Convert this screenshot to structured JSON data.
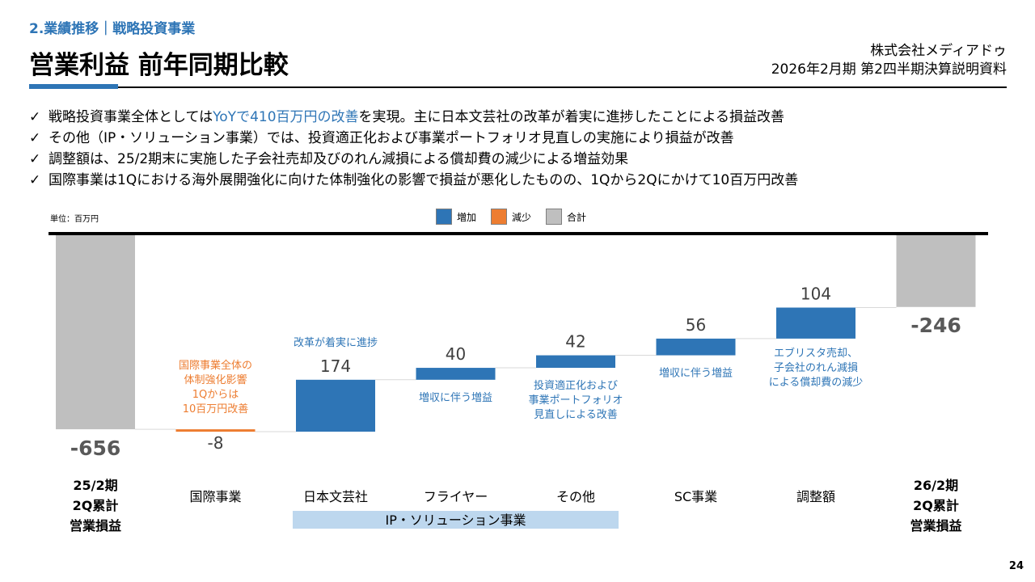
{
  "header": {
    "section": "2.業績推移｜戦略投資事業",
    "title": "営業利益 前年同期比較",
    "company": "株式会社メディアドゥ",
    "document": "2026年2月期 第2四半期決算説明資料"
  },
  "bullets": [
    {
      "pre": "戦略投資事業全体としては",
      "hl": "YoYで410百万円の改善",
      "post": "を実現。主に日本文芸社の改革が着実に進捗したことによる損益改善"
    },
    {
      "pre": "その他（IP・ソリューション事業）では、投資適正化および事業ポートフォリオ見直しの実施により損益が改善",
      "hl": "",
      "post": ""
    },
    {
      "pre": "調整額は、25/2期末に実施した子会社売却及びのれん減損による償却費の減少による増益効果",
      "hl": "",
      "post": ""
    },
    {
      "pre": "国際事業は1Qにおける海外展開強化に向けた体制強化の影響で損益が悪化したものの、1Qから2Qにかけて10百万円改善",
      "hl": "",
      "post": ""
    }
  ],
  "unit_label": "単位：百万円",
  "legend": {
    "increase": "増加",
    "decrease": "減少",
    "total": "合計"
  },
  "colors": {
    "increase": "#2E75B6",
    "decrease": "#ED7D31",
    "total": "#BFBFBF",
    "accent": "#2E75B6"
  },
  "chart_data": {
    "type": "waterfall",
    "unit": "百万円",
    "ylim": [
      -720,
      0
    ],
    "bars": [
      {
        "category": "25/2期\n2Q累計\n営業損益",
        "kind": "total",
        "value": -656,
        "label": "-656",
        "bold": true
      },
      {
        "category": "国際事業",
        "kind": "decrease",
        "value": -8,
        "label": "-8",
        "bold": false
      },
      {
        "category": "日本文芸社",
        "kind": "increase",
        "value": 174,
        "label": "174",
        "bold": false
      },
      {
        "category": "フライヤー",
        "kind": "increase",
        "value": 40,
        "label": "40",
        "bold": false
      },
      {
        "category": "その他",
        "kind": "increase",
        "value": 42,
        "label": "42",
        "bold": false
      },
      {
        "category": "SC事業",
        "kind": "increase",
        "value": 56,
        "label": "56",
        "bold": false
      },
      {
        "category": "調整額",
        "kind": "increase",
        "value": 104,
        "label": "104",
        "bold": false
      },
      {
        "category": "26/2期\n2Q累計\n営業損益",
        "kind": "total",
        "value": -246,
        "label": "-246",
        "bold": true
      }
    ],
    "annotations": [
      {
        "bar": 1,
        "text": "国際事業全体の\n体制強化影響\n1Qからは\n10百万円改善",
        "color": "#ED7D31"
      },
      {
        "bar": 2,
        "text": "改革が着実に進捗",
        "color": "#2E75B6"
      },
      {
        "bar": 3,
        "text": "増収に伴う増益",
        "color": "#2E75B6"
      },
      {
        "bar": 4,
        "text": "投資適正化および\n事業ポートフォリオ\n見直しによる改善",
        "color": "#2E75B6"
      },
      {
        "bar": 5,
        "text": "増収に伴う増益",
        "color": "#2E75B6"
      },
      {
        "bar": 6,
        "text": "エブリスタ売却、\n子会社のれん減損\nによる償却費の減少",
        "color": "#2E75B6"
      }
    ],
    "group_label": {
      "text": "IP・ソリューション事業",
      "from": 2,
      "to": 4
    }
  },
  "page_number": "24"
}
